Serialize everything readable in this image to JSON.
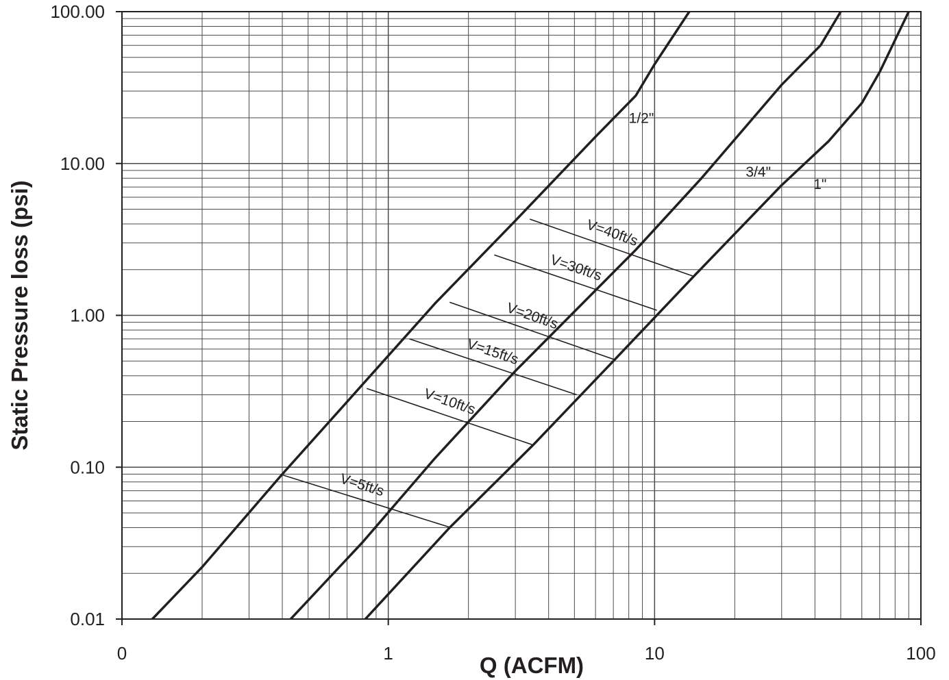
{
  "chart_data": {
    "type": "line",
    "title": "",
    "xlabel": "Q (ACFM)",
    "ylabel": "Static Pressure loss (psi)",
    "xscale": "log",
    "yscale": "log",
    "xlim": [
      0.1,
      100
    ],
    "ylim": [
      0.01,
      100
    ],
    "grid": true,
    "x_tick_labels": [
      {
        "value": 0.1,
        "label": "0"
      },
      {
        "value": 1,
        "label": "1"
      },
      {
        "value": 10,
        "label": "10"
      },
      {
        "value": 100,
        "label": "100"
      }
    ],
    "y_tick_labels": [
      {
        "value": 0.01,
        "label": "0.01"
      },
      {
        "value": 0.1,
        "label": "0.10"
      },
      {
        "value": 1,
        "label": "1.00"
      },
      {
        "value": 10,
        "label": "10.00"
      },
      {
        "value": 100,
        "label": "100.00"
      }
    ],
    "series": [
      {
        "name": "1/2\"",
        "x": [
          0.13,
          0.2,
          0.4,
          0.8,
          1.5,
          3,
          6,
          8.5,
          10,
          13.5
        ],
        "y": [
          0.01,
          0.022,
          0.09,
          0.35,
          1.2,
          4.2,
          15,
          28,
          45,
          100
        ]
      },
      {
        "name": "3/4\"",
        "x": [
          0.43,
          0.8,
          1.5,
          3,
          8.5,
          15,
          30,
          42,
          50
        ],
        "y": [
          0.01,
          0.032,
          0.115,
          0.43,
          2.7,
          8,
          33,
          60,
          100
        ]
      },
      {
        "name": "1\"",
        "x": [
          0.82,
          1.7,
          3.5,
          7,
          14,
          30,
          45,
          60,
          70,
          90
        ],
        "y": [
          0.01,
          0.04,
          0.14,
          0.5,
          1.8,
          7.2,
          14,
          25,
          40,
          100
        ]
      }
    ],
    "velocity_lines": [
      {
        "label": "V=5ft/s",
        "x": [
          0.4,
          1.72
        ],
        "y": [
          0.089,
          0.04
        ]
      },
      {
        "label": "V=10ft/s",
        "x": [
          0.83,
          3.5
        ],
        "y": [
          0.33,
          0.14
        ]
      },
      {
        "label": "V=15ft/s",
        "x": [
          1.2,
          5.1
        ],
        "y": [
          0.7,
          0.3
        ]
      },
      {
        "label": "V=20ft/s",
        "x": [
          1.7,
          7.1
        ],
        "y": [
          1.22,
          0.51
        ]
      },
      {
        "label": "V=30ft/s",
        "x": [
          2.5,
          10.2
        ],
        "y": [
          2.5,
          1.08
        ]
      },
      {
        "label": "V=40ft/s",
        "x": [
          3.4,
          14.1
        ],
        "y": [
          4.3,
          1.8
        ]
      }
    ]
  },
  "colors": {
    "ink": "#231f20",
    "grid": "#4a4a4a",
    "background": "#ffffff"
  }
}
